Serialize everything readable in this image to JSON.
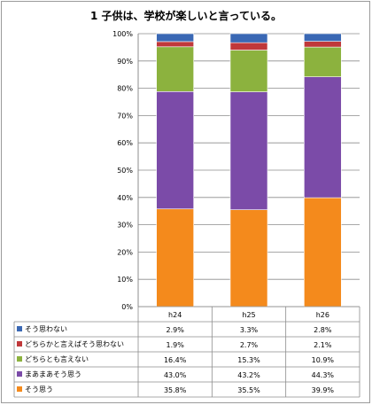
{
  "chart_data": {
    "type": "bar",
    "stacked": true,
    "percent_stacked": true,
    "title": "1 子供は、学校が楽しいと言っている。",
    "categories": [
      "h24",
      "h25",
      "h26"
    ],
    "ylim": [
      0,
      100
    ],
    "yticks": [
      "0%",
      "10%",
      "20%",
      "30%",
      "40%",
      "50%",
      "60%",
      "70%",
      "80%",
      "90%",
      "100%"
    ],
    "grid": true,
    "legend": "bottom-table",
    "series": [
      {
        "name": "そう思う",
        "color": "#f48a1c",
        "values": [
          35.8,
          35.5,
          39.9
        ],
        "labels": [
          "35.8%",
          "35.5%",
          "39.9%"
        ]
      },
      {
        "name": "まあまあそう思う",
        "color": "#7b4ba8",
        "values": [
          43.0,
          43.2,
          44.3
        ],
        "labels": [
          "43.0%",
          "43.2%",
          "44.3%"
        ]
      },
      {
        "name": "どちらとも言えない",
        "color": "#8cb23e",
        "values": [
          16.4,
          15.3,
          10.9
        ],
        "labels": [
          "16.4%",
          "15.3%",
          "10.9%"
        ]
      },
      {
        "name": "どちらかと言えばそう思わない",
        "color": "#c0383a",
        "values": [
          1.9,
          2.7,
          2.1
        ],
        "labels": [
          "1.9%",
          "2.7%",
          "2.1%"
        ]
      },
      {
        "name": "そう思わない",
        "color": "#3a68b4",
        "values": [
          2.9,
          3.3,
          2.8
        ],
        "labels": [
          "2.9%",
          "3.3%",
          "2.8%"
        ]
      }
    ],
    "table_row_order": [
      4,
      3,
      2,
      1,
      0
    ]
  }
}
